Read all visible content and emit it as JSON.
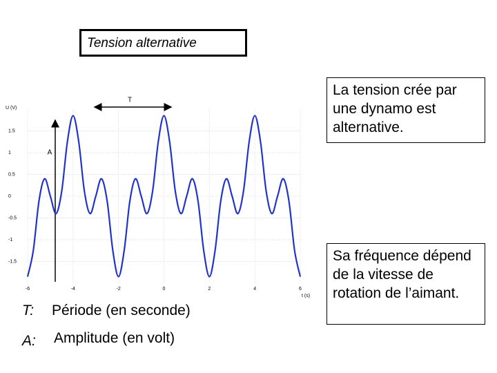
{
  "title": "Tension alternative",
  "chart_data": {
    "type": "line",
    "ylabel": "U (V)",
    "xlabel": "t (s)",
    "annotations": [
      "T",
      "A"
    ],
    "x": [
      -6,
      -5.75,
      -5.5,
      -5.25,
      -5,
      -4.75,
      -4.5,
      -4.25,
      -4,
      -3.75,
      -3.5,
      -3.25,
      -3,
      -2.75,
      -2.5,
      -2.25,
      -2,
      -1.75,
      -1.5,
      -1.25,
      -1,
      -0.75,
      -0.5,
      -0.25,
      0,
      0.25,
      0.5,
      0.75,
      1,
      1.25,
      1.5,
      1.75,
      2,
      2.25,
      2.5,
      2.75,
      3,
      3.25,
      3.5,
      3.75,
      4,
      4.25,
      4.5,
      4.75,
      5,
      5.25,
      5.5,
      5.75,
      6
    ],
    "series": [
      {
        "color": "#2233cc",
        "values": [
          -1.85,
          -1.25,
          -0.11,
          0.4,
          0,
          -0.4,
          0.11,
          1.25,
          1.85,
          1.25,
          0.11,
          -0.4,
          0,
          0.4,
          -0.11,
          -1.25,
          -1.85,
          -1.25,
          -0.11,
          0.4,
          0,
          -0.4,
          0.11,
          1.25,
          1.85,
          1.25,
          0.11,
          -0.4,
          0,
          0.4,
          -0.11,
          -1.25,
          -1.85,
          -1.25,
          -0.11,
          0.4,
          0,
          -0.4,
          0.11,
          1.25,
          1.85,
          1.25,
          0.11,
          -0.4,
          0,
          0.4,
          -0.11,
          -1.25,
          -1.85
        ]
      }
    ],
    "xlim": [
      -6,
      6
    ],
    "ylim": [
      -2,
      2
    ],
    "xticks": [
      -6,
      -4,
      -2,
      0,
      2,
      4,
      6
    ],
    "yticks": [
      1.5,
      1,
      0.5,
      0,
      -0.5,
      -1,
      -1.5
    ],
    "grid": true
  },
  "boxes": [
    "La tension crée par une dynamo est alternative.",
    "Sa fréquence dépend de la vitesse de rotation de l’aimant."
  ],
  "legend": [
    {
      "symbol": "T:",
      "text": "Période (en seconde)"
    },
    {
      "symbol": "A:",
      "text": "Amplitude (en volt)"
    }
  ]
}
